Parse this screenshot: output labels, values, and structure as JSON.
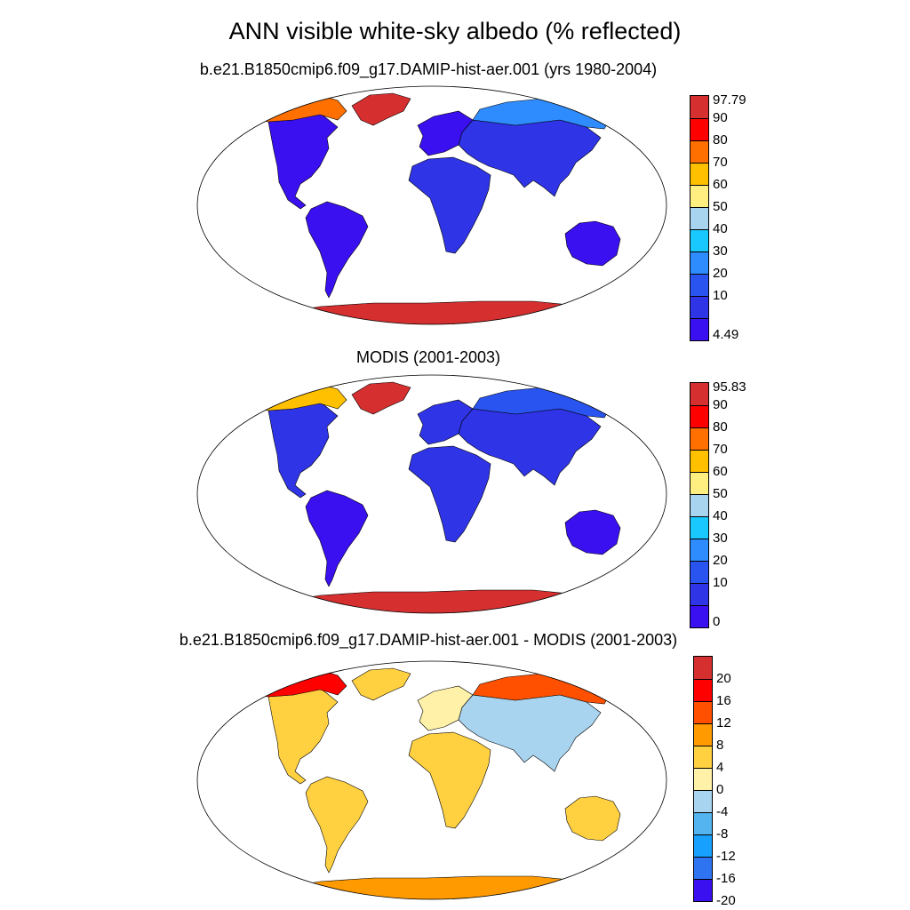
{
  "title": "ANN visible white-sky albedo (% reflected)",
  "chart_data": [
    {
      "type": "heatmap",
      "projection": "Robinson",
      "title": "b.e21.B1850cmip6.f09_g17.DAMIP-hist-aer.001 (yrs 1980-2004)",
      "colorbar": {
        "labels": [
          "97.79",
          "90",
          "80",
          "70",
          "60",
          "50",
          "40",
          "30",
          "20",
          "10",
          "4.49"
        ],
        "colors": [
          "#d62f2f",
          "#ff0000",
          "#ff7000",
          "#ffc000",
          "#ffef80",
          "#a8d4ef",
          "#18c8ff",
          "#2e8cff",
          "#2a54f0",
          "#2f34e6",
          "#3a10f0"
        ],
        "min": 4.49,
        "max": 97.79
      },
      "regions": [
        {
          "name": "North America",
          "value": 12
        },
        {
          "name": "Canadian Arctic",
          "value": 75
        },
        {
          "name": "Greenland",
          "value": 92
        },
        {
          "name": "South America",
          "value": 6
        },
        {
          "name": "Europe",
          "value": 12
        },
        {
          "name": "Africa",
          "value": 18
        },
        {
          "name": "Asia",
          "value": 14
        },
        {
          "name": "Siberia",
          "value": 35
        },
        {
          "name": "Australia",
          "value": 12
        },
        {
          "name": "Antarctica",
          "value": 95
        }
      ]
    },
    {
      "type": "heatmap",
      "projection": "Robinson",
      "title": "MODIS (2001-2003)",
      "colorbar": {
        "labels": [
          "95.83",
          "90",
          "80",
          "70",
          "60",
          "50",
          "40",
          "30",
          "20",
          "10",
          "0"
        ],
        "colors": [
          "#d62f2f",
          "#ff0000",
          "#ff7000",
          "#ffc000",
          "#ffef80",
          "#a8d4ef",
          "#18c8ff",
          "#2e8cff",
          "#2a54f0",
          "#2f34e6",
          "#3a10f0"
        ],
        "min": 0,
        "max": 95.83
      },
      "regions": [
        {
          "name": "North America",
          "value": 12
        },
        {
          "name": "Canadian Arctic",
          "value": 62
        },
        {
          "name": "Greenland",
          "value": 92
        },
        {
          "name": "South America",
          "value": 5
        },
        {
          "name": "Europe",
          "value": 12
        },
        {
          "name": "Africa",
          "value": 14
        },
        {
          "name": "Asia",
          "value": 12
        },
        {
          "name": "Siberia",
          "value": 22
        },
        {
          "name": "Australia",
          "value": 8
        },
        {
          "name": "Antarctica",
          "value": 92
        }
      ]
    },
    {
      "type": "heatmap",
      "projection": "Robinson",
      "title": "b.e21.B1850cmip6.f09_g17.DAMIP-hist-aer.001 - MODIS (2001-2003)",
      "colorbar": {
        "labels": [
          "20",
          "16",
          "12",
          "8",
          "4",
          "0",
          "-4",
          "-8",
          "-12",
          "-16",
          "-20"
        ],
        "colors": [
          "#d62f2f",
          "#ff0000",
          "#ff5000",
          "#ff9a00",
          "#ffd040",
          "#fff2a8",
          "#a8d4ef",
          "#54b4f0",
          "#18a0ff",
          "#2e74f0",
          "#3a10f0"
        ],
        "min": -20,
        "max": 20
      },
      "regions": [
        {
          "name": "North America",
          "value": 2
        },
        {
          "name": "Canadian Arctic",
          "value": 14
        },
        {
          "name": "Greenland",
          "value": 3
        },
        {
          "name": "South America",
          "value": 2
        },
        {
          "name": "Europe",
          "value": 1
        },
        {
          "name": "Africa",
          "value": 2
        },
        {
          "name": "Asia",
          "value": -3
        },
        {
          "name": "Siberia",
          "value": 10
        },
        {
          "name": "Australia",
          "value": 2
        },
        {
          "name": "Antarctica",
          "value": 6
        }
      ]
    }
  ]
}
